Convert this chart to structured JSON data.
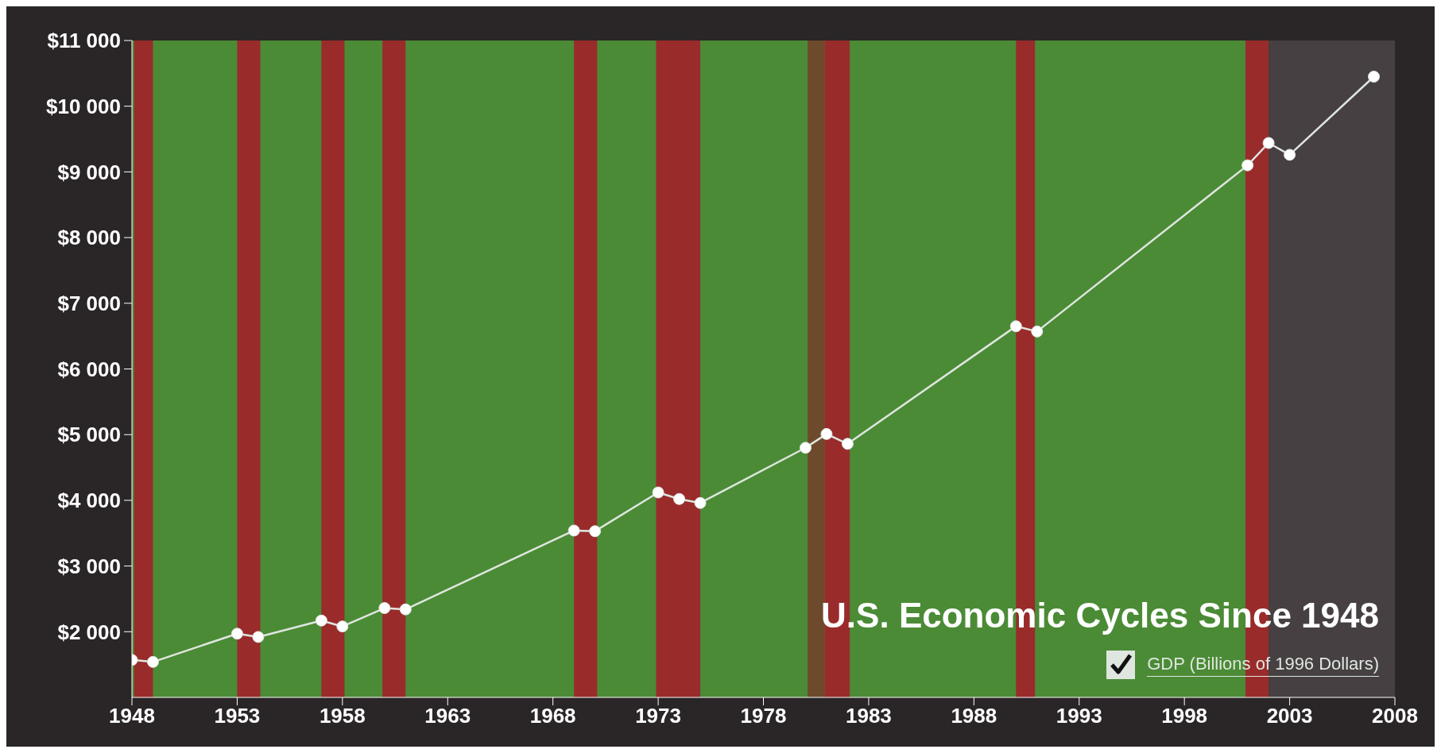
{
  "chart_data": {
    "type": "line",
    "title": "U.S. Economic Cycles Since 1948",
    "x": [
      1948,
      1949,
      1953,
      1954,
      1957,
      1958,
      1960,
      1961,
      1969,
      1970,
      1973,
      1974,
      1975,
      1980,
      1981,
      1982,
      1990,
      1991,
      2001,
      2002,
      2003,
      2007
    ],
    "series": [
      {
        "name": "GDP (Billions of 1996 Dollars)",
        "color": "#dfe6df",
        "values": [
          1570,
          1540,
          1970,
          1920,
          2170,
          2080,
          2360,
          2340,
          3540,
          3530,
          4120,
          4020,
          3960,
          4800,
          5010,
          4860,
          6650,
          6570,
          9100,
          9440,
          9260,
          10450
        ]
      }
    ],
    "xlim": [
      1948,
      2008
    ],
    "xticks": [
      1948,
      1953,
      1958,
      1963,
      1968,
      1973,
      1978,
      1983,
      1988,
      1993,
      1998,
      2003,
      2008
    ],
    "ylim": [
      1000,
      11000
    ],
    "yticks": [
      {
        "value": 2000,
        "label": "$2 000"
      },
      {
        "value": 3000,
        "label": "$3 000"
      },
      {
        "value": 4000,
        "label": "$4 000"
      },
      {
        "value": 5000,
        "label": "$5 000"
      },
      {
        "value": 6000,
        "label": "$6 000"
      },
      {
        "value": 7000,
        "label": "$7 000"
      },
      {
        "value": 8000,
        "label": "$8 000"
      },
      {
        "value": 9000,
        "label": "$9 000"
      },
      {
        "value": 10000,
        "label": "$10 000"
      },
      {
        "value": 11000,
        "label": "$11 000"
      }
    ],
    "bands": [
      {
        "axis": "x",
        "from": 1948,
        "to": 2002,
        "color": "#4b8b36"
      },
      {
        "axis": "x",
        "from": 2002,
        "to": 2008,
        "color": "#464042"
      },
      {
        "axis": "x",
        "from": 1948.1,
        "to": 1949,
        "color": "#9a2b2b"
      },
      {
        "axis": "x",
        "from": 1953,
        "to": 1954.1,
        "color": "#9a2b2b"
      },
      {
        "axis": "x",
        "from": 1957,
        "to": 1958.1,
        "color": "#9a2b2b"
      },
      {
        "axis": "x",
        "from": 1959.9,
        "to": 1961,
        "color": "#9a2b2b"
      },
      {
        "axis": "x",
        "from": 1969,
        "to": 1970.1,
        "color": "#9a2b2b"
      },
      {
        "axis": "x",
        "from": 1972.9,
        "to": 1975,
        "color": "#9a2b2b"
      },
      {
        "axis": "x",
        "from": 1980.1,
        "to": 1980.9,
        "color": "#6e4a2c"
      },
      {
        "axis": "x",
        "from": 1980.9,
        "to": 1982.1,
        "color": "#9a2b2b"
      },
      {
        "axis": "x",
        "from": 1990,
        "to": 1990.9,
        "color": "#9a2b2b"
      },
      {
        "axis": "x",
        "from": 2000.9,
        "to": 2002,
        "color": "#9a2b2b"
      }
    ],
    "marker": "circle",
    "legend": "bottom right"
  }
}
